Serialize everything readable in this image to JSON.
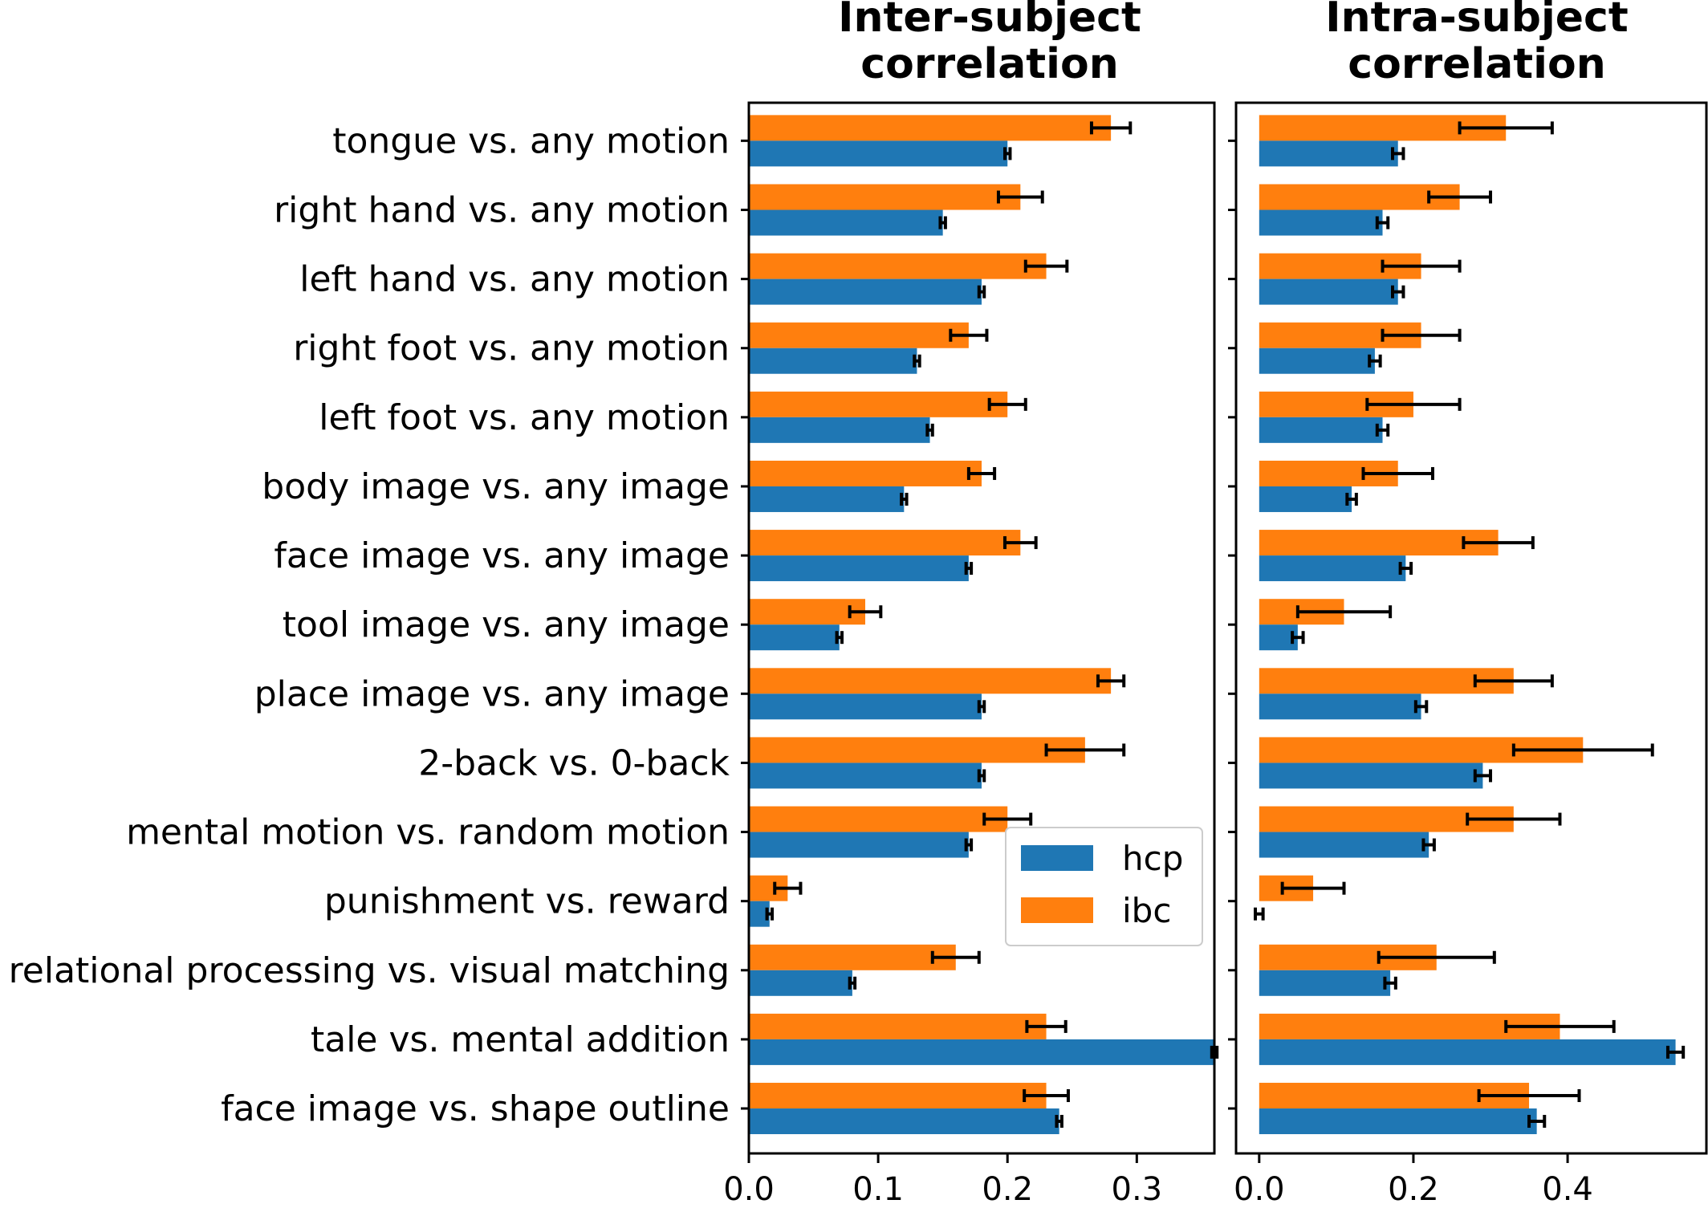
{
  "chart_data": [
    {
      "type": "bar",
      "orientation": "horizontal",
      "title": "Inter-subject\ncorrelation",
      "categories": [
        "tongue vs. any motion",
        "right hand vs. any motion",
        "left hand vs. any motion",
        "right foot vs. any motion",
        "left foot vs. any motion",
        "body image vs. any image",
        "face image vs. any image",
        "tool image vs. any image",
        "place image vs. any image",
        "2-back vs. 0-back",
        "mental motion vs. random motion",
        "punishment vs. reward",
        "relational processing vs. visual matching",
        "tale vs. mental addition",
        "face image vs. shape outline"
      ],
      "series": [
        {
          "name": "ibc",
          "color": "#ff7f0e",
          "values": [
            0.28,
            0.21,
            0.23,
            0.17,
            0.2,
            0.18,
            0.21,
            0.09,
            0.28,
            0.26,
            0.2,
            0.03,
            0.16,
            0.23,
            0.23
          ],
          "errors": [
            0.015,
            0.017,
            0.016,
            0.014,
            0.014,
            0.01,
            0.012,
            0.012,
            0.01,
            0.03,
            0.018,
            0.01,
            0.018,
            0.015,
            0.017
          ]
        },
        {
          "name": "hcp",
          "color": "#1f77b4",
          "values": [
            0.2,
            0.15,
            0.18,
            0.13,
            0.14,
            0.12,
            0.17,
            0.07,
            0.18,
            0.18,
            0.17,
            0.016,
            0.08,
            0.36,
            0.24
          ],
          "errors": [
            0.002,
            0.002,
            0.002,
            0.002,
            0.002,
            0.002,
            0.002,
            0.002,
            0.002,
            0.002,
            0.002,
            0.002,
            0.002,
            0.002,
            0.002
          ]
        }
      ],
      "xlim": [
        0,
        0.36
      ],
      "xticks": [
        "0.0",
        "0.1",
        "0.2",
        "0.3"
      ],
      "xtick_values": [
        0,
        0.1,
        0.2,
        0.3
      ],
      "ylim": [
        -0.65,
        14.55
      ]
    },
    {
      "type": "bar",
      "orientation": "horizontal",
      "title": "Intra-subject\ncorrelation",
      "series": [
        {
          "name": "ibc",
          "color": "#ff7f0e",
          "values": [
            0.32,
            0.26,
            0.21,
            0.21,
            0.2,
            0.18,
            0.31,
            0.11,
            0.33,
            0.42,
            0.33,
            0.07,
            0.23,
            0.39,
            0.35
          ],
          "errors": [
            0.06,
            0.04,
            0.05,
            0.05,
            0.06,
            0.045,
            0.045,
            0.06,
            0.05,
            0.09,
            0.06,
            0.04,
            0.075,
            0.07,
            0.065
          ]
        },
        {
          "name": "hcp",
          "color": "#1f77b4",
          "values": [
            0.18,
            0.16,
            0.18,
            0.15,
            0.16,
            0.12,
            0.19,
            0.05,
            0.21,
            0.29,
            0.22,
            0.0,
            0.17,
            0.54,
            0.36
          ],
          "errors": [
            0.007,
            0.007,
            0.007,
            0.007,
            0.007,
            0.006,
            0.007,
            0.007,
            0.007,
            0.01,
            0.007,
            0.005,
            0.007,
            0.01,
            0.01
          ]
        }
      ],
      "xlim": [
        -0.03,
        0.58
      ],
      "xticks": [
        "0.0",
        "0.2",
        "0.4"
      ],
      "xtick_values": [
        0,
        0.2,
        0.4
      ],
      "ylim": [
        -0.65,
        14.55
      ]
    }
  ],
  "legend": {
    "placement": "inside first panel, lower right",
    "entries": [
      {
        "label": "hcp",
        "color": "#1f77b4"
      },
      {
        "label": "ibc",
        "color": "#ff7f0e"
      }
    ]
  }
}
